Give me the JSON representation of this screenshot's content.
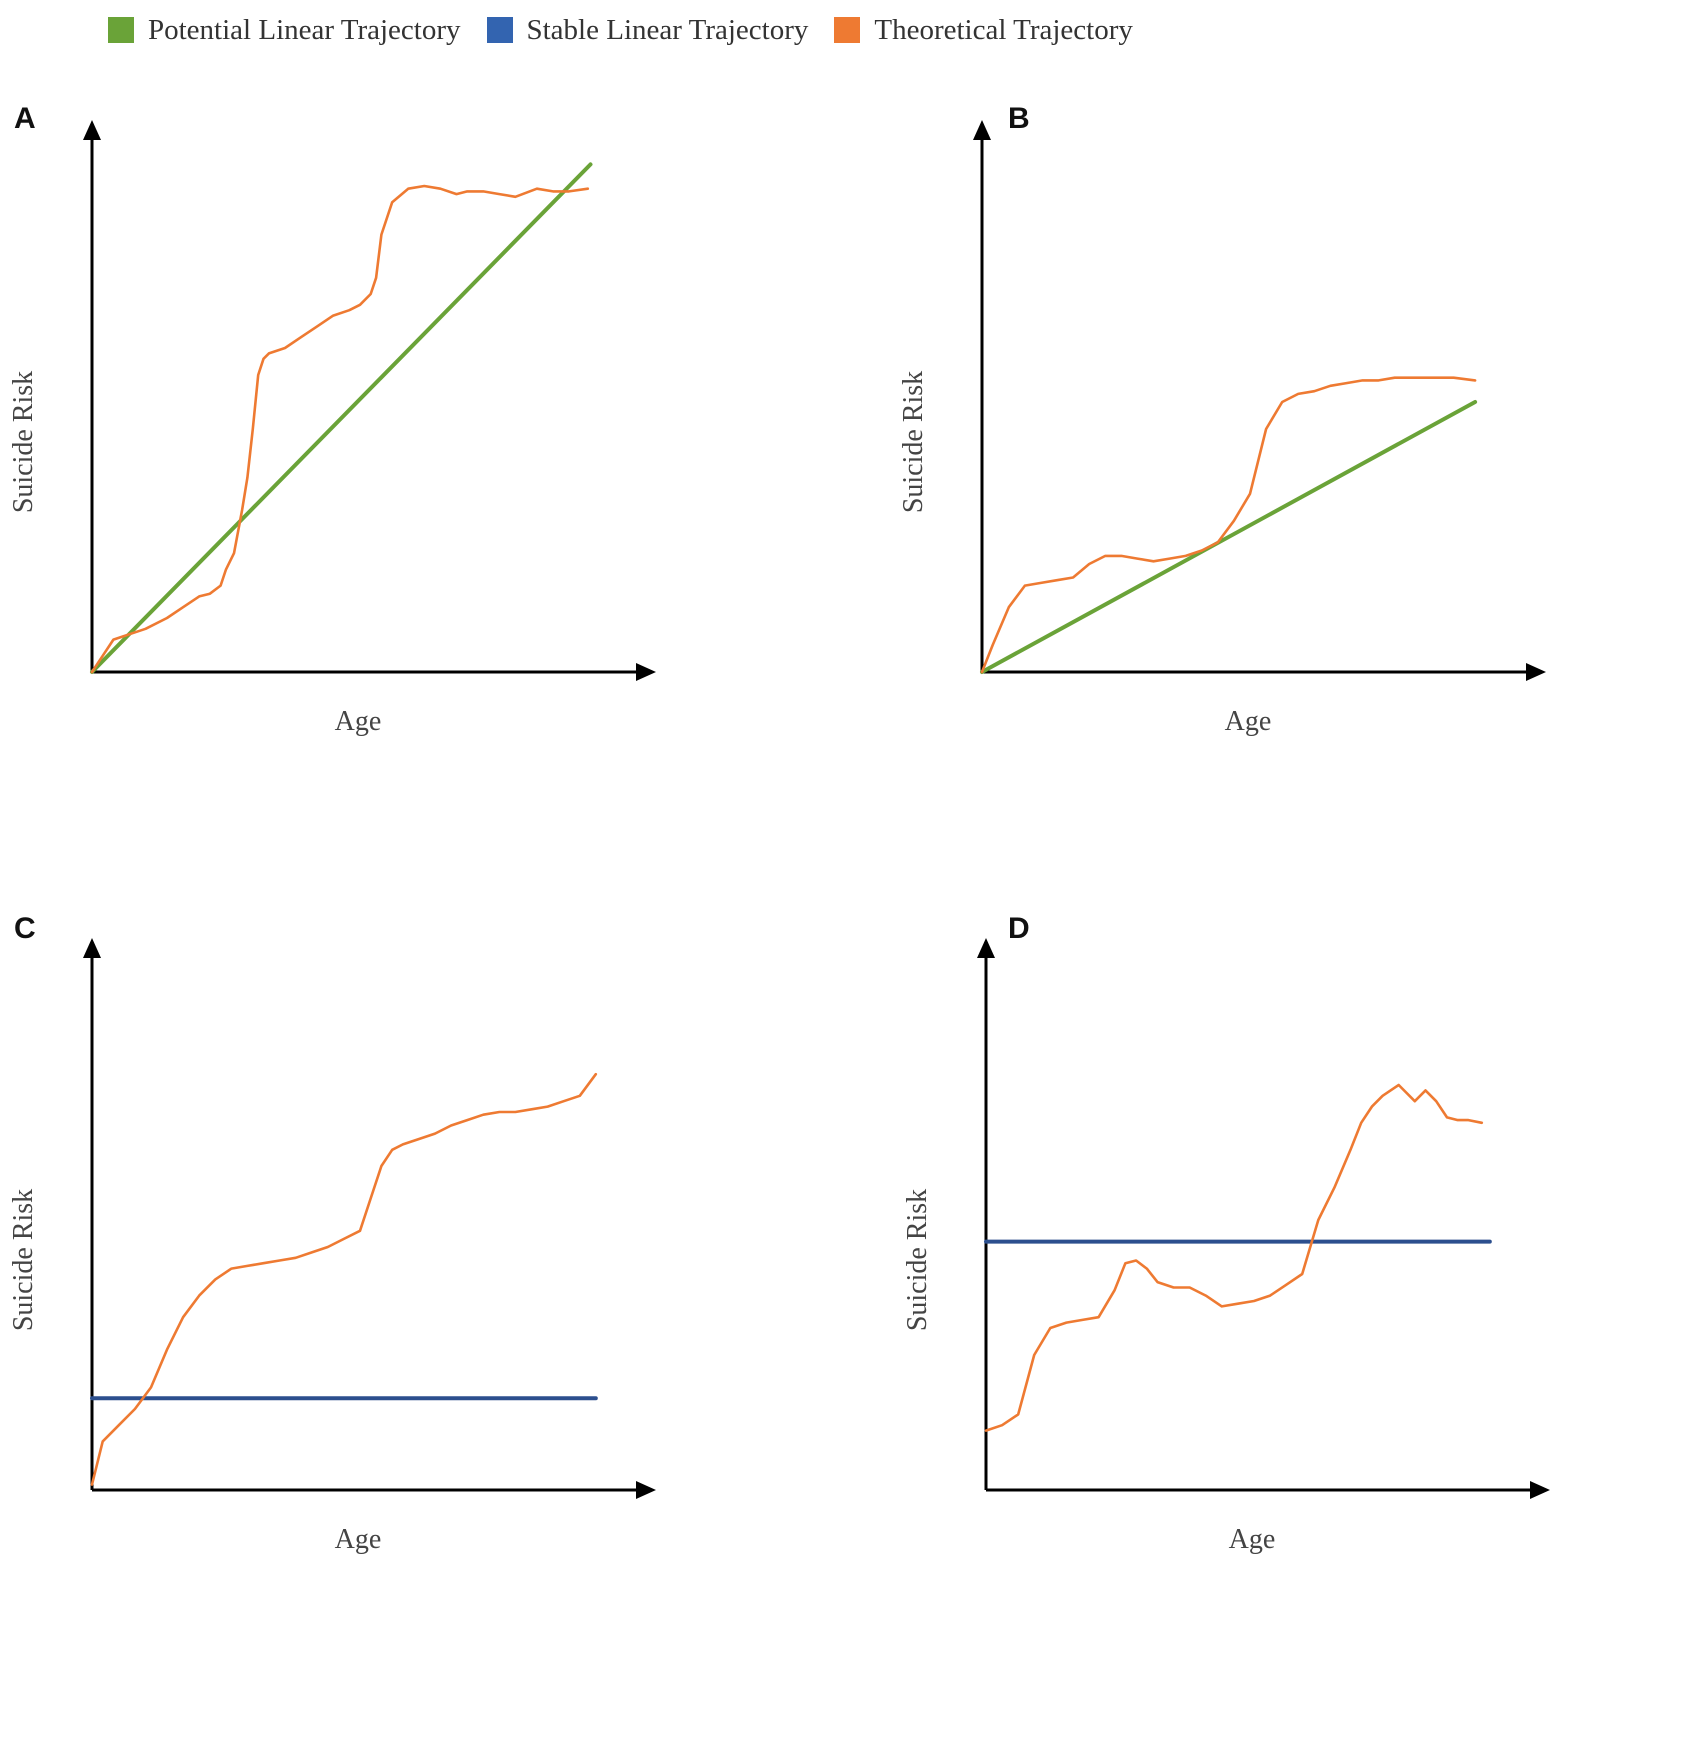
{
  "legend": {
    "items": [
      {
        "label": "Potential Linear Trajectory",
        "color": "#6aa338"
      },
      {
        "label": "Stable Linear Trajectory",
        "color": "#3364b0"
      },
      {
        "label": "Theoretical Trajectory",
        "color": "#ee7a32"
      }
    ]
  },
  "colors": {
    "potential": "#6aa338",
    "stable": "#2c4f8e",
    "theoretical": "#ee7a32",
    "axis": "#000000"
  },
  "chart_data": [
    {
      "panel": "A",
      "type": "line",
      "xlabel": "Age",
      "ylabel": "Suicide Risk",
      "xlim": [
        0,
        100
      ],
      "ylim": [
        0,
        100
      ],
      "ticks": "none",
      "series": [
        {
          "name": "Potential Linear Trajectory",
          "kind": "potential",
          "x": [
            0,
            93
          ],
          "y": [
            0,
            94
          ]
        },
        {
          "name": "Theoretical Trajectory",
          "kind": "theoretical",
          "x": [
            0,
            2,
            4,
            7,
            10,
            14,
            17,
            20,
            22,
            24,
            25,
            26.5,
            28,
            29,
            30,
            31,
            32,
            33,
            36,
            39,
            42,
            45,
            48,
            50,
            52,
            53,
            54,
            56,
            59,
            62,
            65,
            68,
            70,
            73,
            76,
            79,
            83,
            86,
            89,
            92.5
          ],
          "y": [
            0,
            3,
            6,
            7,
            8,
            10,
            12,
            14,
            14.5,
            16,
            19,
            22,
            30,
            36,
            45,
            55,
            58,
            59,
            60,
            62,
            64,
            66,
            67,
            68,
            70,
            73,
            81,
            87,
            89.5,
            90,
            89.5,
            88.5,
            89,
            89,
            88.5,
            88,
            89.5,
            89,
            89,
            89.5
          ]
        }
      ]
    },
    {
      "panel": "B",
      "type": "line",
      "xlabel": "Age",
      "ylabel": "Suicide Risk",
      "xlim": [
        0,
        100
      ],
      "ylim": [
        0,
        100
      ],
      "ticks": "none",
      "series": [
        {
          "name": "Potential Linear Trajectory",
          "kind": "potential",
          "x": [
            0,
            92
          ],
          "y": [
            0,
            50
          ]
        },
        {
          "name": "Theoretical Trajectory",
          "kind": "theoretical",
          "x": [
            0,
            2,
            5,
            8,
            11,
            14,
            17,
            20,
            23,
            26,
            29,
            32,
            35,
            38,
            41,
            44,
            47,
            50,
            53,
            56,
            59,
            62,
            65,
            68,
            71,
            74,
            77,
            80,
            84,
            88,
            92
          ],
          "y": [
            0,
            5,
            12,
            16,
            16.5,
            17,
            17.5,
            20,
            21.5,
            21.5,
            21,
            20.5,
            21,
            21.5,
            22.5,
            24,
            28,
            33,
            45,
            50,
            51.5,
            52,
            53,
            53.5,
            54,
            54,
            54.5,
            54.5,
            54.5,
            54.5,
            54
          ]
        }
      ]
    },
    {
      "panel": "C",
      "type": "line",
      "xlabel": "Age",
      "ylabel": "Suicide Risk",
      "xlim": [
        0,
        100
      ],
      "ylim": [
        0,
        100
      ],
      "ticks": "none",
      "series": [
        {
          "name": "Stable Linear Trajectory",
          "kind": "stable",
          "x": [
            0,
            94
          ],
          "y": [
            17,
            17
          ]
        },
        {
          "name": "Theoretical Trajectory",
          "kind": "theoretical",
          "x": [
            0,
            2,
            5,
            8,
            11,
            14,
            17,
            20,
            23,
            26,
            29,
            32,
            35,
            38,
            41,
            44,
            47,
            50,
            52,
            54,
            56,
            58,
            61,
            64,
            67,
            70,
            73,
            76,
            79,
            82,
            85,
            88,
            91,
            94
          ],
          "y": [
            1,
            9,
            12,
            15,
            19,
            26,
            32,
            36,
            39,
            41,
            41.5,
            42,
            42.5,
            43,
            44,
            45,
            46.5,
            48,
            54,
            60,
            63,
            64,
            65,
            66,
            67.5,
            68.5,
            69.5,
            70,
            70,
            70.5,
            71,
            72,
            73,
            77
          ]
        }
      ]
    },
    {
      "panel": "D",
      "type": "line",
      "xlabel": "Age",
      "ylabel": "Suicide Risk",
      "xlim": [
        0,
        100
      ],
      "ylim": [
        0,
        100
      ],
      "ticks": "none",
      "series": [
        {
          "name": "Stable Linear Trajectory",
          "kind": "stable",
          "x": [
            0,
            94
          ],
          "y": [
            46,
            46
          ]
        },
        {
          "name": "Theoretical Trajectory",
          "kind": "theoretical",
          "x": [
            0,
            3,
            6,
            9,
            12,
            15,
            18,
            21,
            24,
            26,
            28,
            30,
            32,
            35,
            38,
            41,
            44,
            47,
            50,
            53,
            56,
            59,
            62,
            65,
            68,
            70,
            72,
            74,
            77,
            80,
            82,
            84,
            86,
            88,
            90,
            92.5
          ],
          "y": [
            11,
            12,
            14,
            25,
            30,
            31,
            31.5,
            32,
            37,
            42,
            42.5,
            41,
            38.5,
            37.5,
            37.5,
            36,
            34,
            34.5,
            35,
            36,
            38,
            40,
            50,
            56,
            63,
            68,
            71,
            73,
            75,
            72,
            74,
            72,
            69,
            68.5,
            68.5,
            68
          ]
        }
      ]
    }
  ]
}
